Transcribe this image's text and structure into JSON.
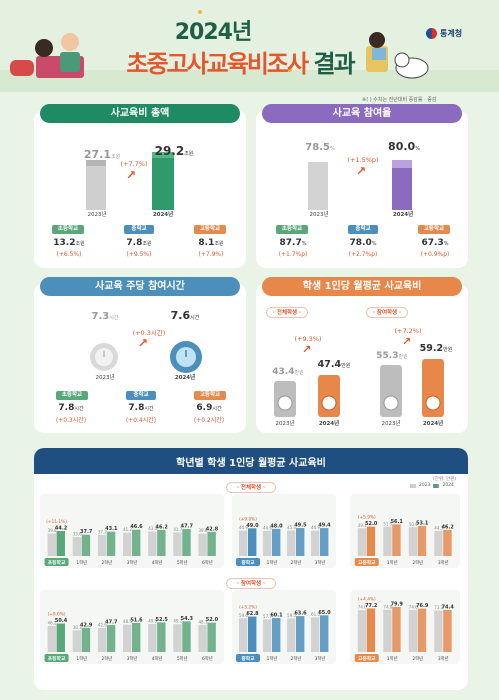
{
  "header": {
    "title_year": "2024년",
    "title_main": "초중고사교육비조사",
    "title_suffix": "결과",
    "org": "통계청",
    "note": "※(   ) 수치는 전년대비 증감률 · 증감"
  },
  "colors": {
    "green": "#1f8b64",
    "purple": "#8a6bc0",
    "blue": "#4b8fba",
    "orange": "#e8874a",
    "navy": "#1f4f80",
    "accent": "#e2572c",
    "ms_green": "#5aa77a",
    "hs_orange": "#e38a4f"
  },
  "total": {
    "title": "사교육비 총액",
    "prev_value": "27.1",
    "prev_unit": "조원",
    "prev_year": "2023년",
    "cur_value": "29.2",
    "cur_unit": "조원",
    "cur_year": "2024년",
    "change": "(+7.7%)",
    "schools": [
      {
        "name": "초등학교",
        "value": "13.2",
        "unit": "조원",
        "change": "(+6.5%)"
      },
      {
        "name": "중학교",
        "value": "7.8",
        "unit": "조원",
        "change": "(+9.5%)"
      },
      {
        "name": "고등학교",
        "value": "8.1",
        "unit": "조원",
        "change": "(+7.9%)"
      }
    ]
  },
  "rate": {
    "title": "사교육 참여율",
    "prev_value": "78.5",
    "prev_unit": "%",
    "prev_year": "2023년",
    "cur_value": "80.0",
    "cur_unit": "%",
    "cur_year": "2024년",
    "change": "(+1.5%p)",
    "schools": [
      {
        "name": "초등학교",
        "value": "87.7",
        "unit": "%",
        "change": "(+1.7%p)"
      },
      {
        "name": "중학교",
        "value": "78.0",
        "unit": "%",
        "change": "(+2.7%p)"
      },
      {
        "name": "고등학교",
        "value": "67.3",
        "unit": "%",
        "change": "(+0.9%p)"
      }
    ]
  },
  "hours": {
    "title": "사교육 주당 참여시간",
    "prev_value": "7.3",
    "prev_unit": "시간",
    "prev_year": "2023년",
    "cur_value": "7.6",
    "cur_unit": "시간",
    "cur_year": "2024년",
    "change": "(+0.3시간)",
    "schools": [
      {
        "name": "초등학교",
        "value": "7.8",
        "unit": "시간",
        "change": "(+0.3시간)"
      },
      {
        "name": "중학교",
        "value": "7.8",
        "unit": "시간",
        "change": "(+0.4시간)"
      },
      {
        "name": "고등학교",
        "value": "6.9",
        "unit": "시간",
        "change": "(+0.2시간)"
      }
    ]
  },
  "monthly": {
    "title": "학생 1인당 월평균 사교육비",
    "all": {
      "label": "· 전체학생 ·",
      "prev_value": "43.4",
      "prev_unit": "만원",
      "prev_year": "2023년",
      "cur_value": "47.4",
      "cur_unit": "만원",
      "cur_year": "2024년",
      "change": "(+9.3%)"
    },
    "participants": {
      "label": "· 참여학생 ·",
      "prev_value": "55.3",
      "prev_unit": "만원",
      "prev_year": "2023년",
      "cur_value": "59.2",
      "cur_unit": "만원",
      "cur_year": "2024년",
      "change": "(+7.2%)"
    }
  },
  "grade": {
    "title": "학년별 학생 1인당 월평균 사교육비",
    "unit_note": "(단위: 만원)",
    "legend_prev": "2023",
    "legend_cur": "2024",
    "section_all": "· 전체학생 ·",
    "section_part": "· 참여학생 ·"
  },
  "chart_data": [
    {
      "type": "bar",
      "title": "전체학생 초등학교",
      "categories": [
        "초등학교",
        "1학년",
        "2학년",
        "3학년",
        "4학년",
        "5학년",
        "6학년"
      ],
      "series": [
        {
          "name": "2023",
          "values": [
            39.8,
            33.6,
            37.2,
            41.2,
            43.4,
            41.7,
            39.8
          ]
        },
        {
          "name": "2024",
          "values": [
            44.2,
            37.7,
            43.1,
            46.6,
            46.2,
            47.7,
            42.8
          ]
        }
      ],
      "annotations": [
        "(+11.1%)"
      ]
    },
    {
      "type": "bar",
      "title": "전체학생 중학교",
      "categories": [
        "중학교",
        "1학년",
        "2학년",
        "3학년"
      ],
      "series": [
        {
          "name": "2023",
          "values": [
            44.9,
            44.6,
            45.3,
            44.9
          ]
        },
        {
          "name": "2024",
          "values": [
            49.0,
            48.0,
            49.5,
            49.4
          ]
        }
      ],
      "annotations": [
        "(+9.0%)"
      ]
    },
    {
      "type": "bar",
      "title": "전체학생 고등학교",
      "categories": [
        "고등학교",
        "1학년",
        "2학년",
        "3학년"
      ],
      "series": [
        {
          "name": "2023",
          "values": [
            49.1,
            51.5,
            50.9,
            44.3
          ]
        },
        {
          "name": "2024",
          "values": [
            52.0,
            56.1,
            53.1,
            46.2
          ]
        }
      ],
      "annotations": [
        "(+5.9%)"
      ]
    },
    {
      "type": "bar",
      "title": "참여학생 초등학교",
      "categories": [
        "초등학교",
        "1학년",
        "2학년",
        "3학년",
        "4학년",
        "5학년",
        "6학년"
      ],
      "series": [
        {
          "name": "2023",
          "values": [
            46.2,
            38.3,
            42.6,
            48.5,
            49.5,
            49.2,
            48.1
          ]
        },
        {
          "name": "2024",
          "values": [
            50.4,
            42.9,
            47.7,
            51.6,
            52.5,
            54.3,
            52.0
          ]
        }
      ],
      "annotations": [
        "(+9.0%)"
      ]
    },
    {
      "type": "bar",
      "title": "참여학생 중학교",
      "categories": [
        "중학교",
        "1학년",
        "2학년",
        "3학년"
      ],
      "series": [
        {
          "name": "2023",
          "values": [
            59.6,
            57.7,
            59.5,
            61.5
          ]
        },
        {
          "name": "2024",
          "values": [
            62.8,
            60.1,
            63.6,
            65.0
          ]
        }
      ],
      "annotations": [
        "(+5.2%)"
      ]
    },
    {
      "type": "bar",
      "title": "참여학생 고등학교",
      "categories": [
        "고등학교",
        "1학년",
        "2학년",
        "3학년"
      ],
      "series": [
        {
          "name": "2023",
          "values": [
            74.0,
            74.8,
            74.6,
            73.3
          ]
        },
        {
          "name": "2024",
          "values": [
            77.2,
            79.9,
            76.9,
            74.4
          ]
        }
      ],
      "annotations": [
        "(+4.4%)"
      ]
    }
  ]
}
